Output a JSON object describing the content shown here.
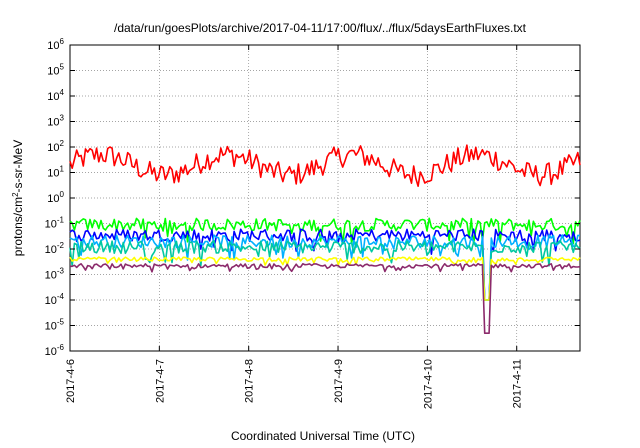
{
  "chart_data": {
    "type": "line",
    "title": "/data/run/goesPlots/archive/2017-04-11/17:00/flux/../flux/5daysEarthFluxes.txt",
    "xlabel": "Coordinated Universal Time (UTC)",
    "ylabel": "protons/cm²-s-sr-MeV",
    "ylabel_parts": {
      "pre": "protons/cm",
      "sup": "2",
      "post": "-s-sr-MeV"
    },
    "x_ticks": [
      "2017-4-6",
      "2017-4-7",
      "2017-4-8",
      "2017-4-9",
      "2017-4-10",
      "2017-4-11"
    ],
    "xlim": [
      "2017-04-06 00:00",
      "2017-04-11 17:00"
    ],
    "y_scale": "log",
    "y_ticks": [
      {
        "base": "10",
        "exp": "-6"
      },
      {
        "base": "10",
        "exp": "-5"
      },
      {
        "base": "10",
        "exp": "-4"
      },
      {
        "base": "10",
        "exp": "-3"
      },
      {
        "base": "10",
        "exp": "-2"
      },
      {
        "base": "10",
        "exp": "-1"
      },
      {
        "base": "10",
        "exp": "0"
      },
      {
        "base": "10",
        "exp": "1"
      },
      {
        "base": "10",
        "exp": "2"
      },
      {
        "base": "10",
        "exp": "3"
      },
      {
        "base": "10",
        "exp": "4"
      },
      {
        "base": "10",
        "exp": "5"
      },
      {
        "base": "10",
        "exp": "6"
      }
    ],
    "ylim": [
      1e-06,
      1000000.0
    ],
    "grid": "dotted",
    "legend": "none",
    "series": [
      {
        "color": "#ff0000",
        "baseline": 20,
        "spread": 0.45,
        "dip": null
      },
      {
        "color": "#00ff00",
        "baseline": 0.09,
        "spread": 0.25,
        "dip": null
      },
      {
        "color": "#0000ff",
        "baseline": 0.035,
        "spread": 0.25,
        "dip": 0.0001
      },
      {
        "color": "#00b0ff",
        "baseline": 0.02,
        "spread": 0.25,
        "dip": 0.0001
      },
      {
        "color": "#00c8a0",
        "baseline": 0.012,
        "spread": 0.25,
        "dip": 0.0001
      },
      {
        "color": "#ffff00",
        "baseline": 0.004,
        "spread": 0.08,
        "dip": 0.0001
      },
      {
        "color": "#8b2a6b",
        "baseline": 0.0022,
        "spread": 0.08,
        "dip": 5e-06
      }
    ],
    "event_dip": {
      "date": "2017-04-10 16:00",
      "note": "sharp dip in the lower channels"
    }
  }
}
